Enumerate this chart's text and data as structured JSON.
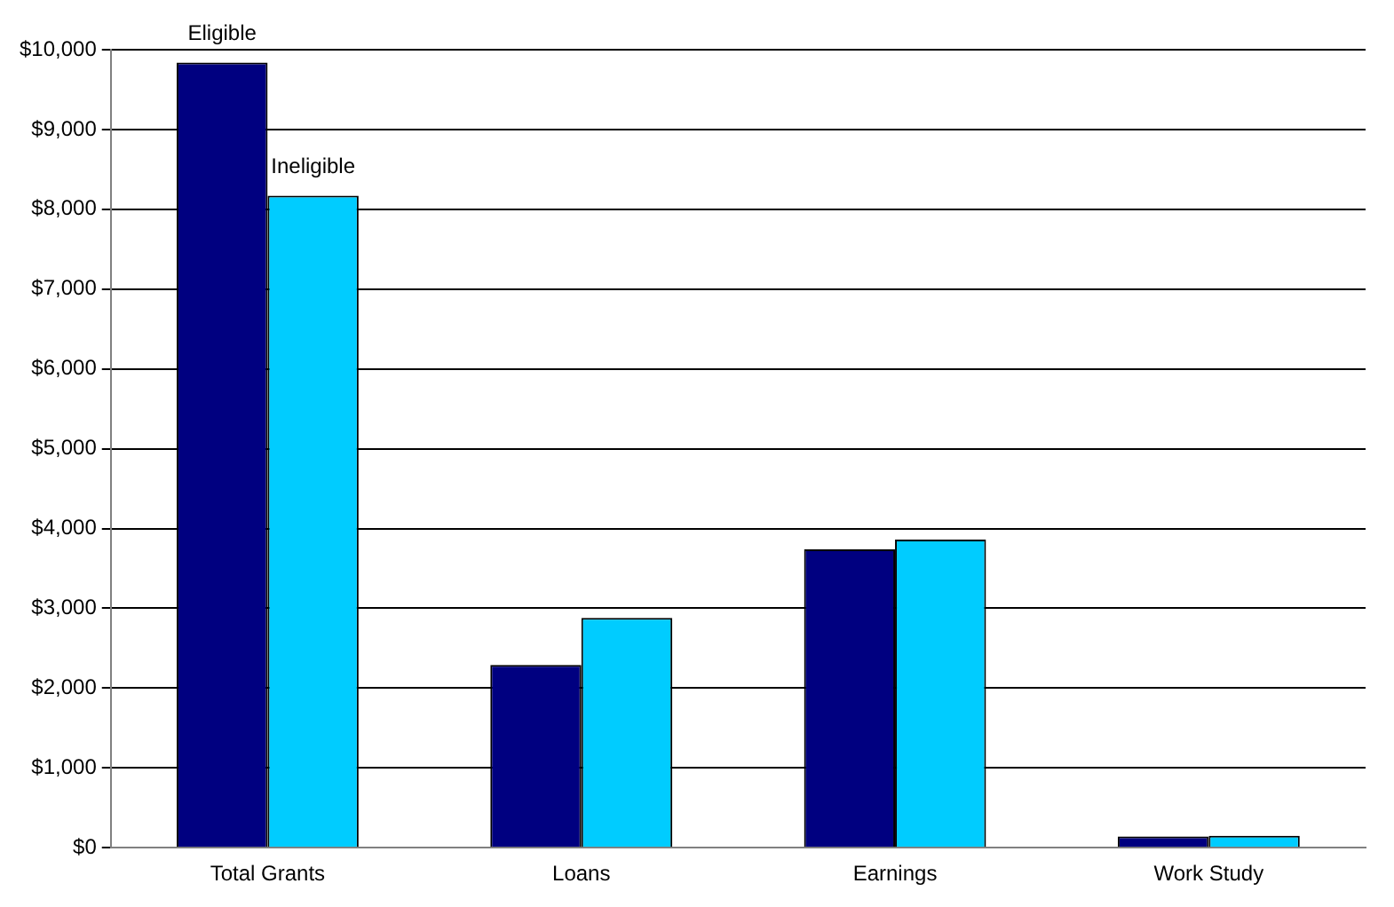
{
  "chart_data": {
    "type": "bar",
    "categories": [
      "Total Grants",
      "Loans",
      "Earnings",
      "Work Study"
    ],
    "series": [
      {
        "name": "Eligible",
        "color": "#000080",
        "values": [
          9840,
          2290,
          3740,
          140
        ]
      },
      {
        "name": "Ineligible",
        "color": "#00ccff",
        "values": [
          8170,
          2880,
          3860,
          150
        ]
      }
    ],
    "ylim": [
      0,
      10000
    ],
    "yticks": [
      {
        "value": 0,
        "label": "$0"
      },
      {
        "value": 1000,
        "label": "$1,000"
      },
      {
        "value": 2000,
        "label": "$2,000"
      },
      {
        "value": 3000,
        "label": "$3,000"
      },
      {
        "value": 4000,
        "label": "$4,000"
      },
      {
        "value": 5000,
        "label": "$5,000"
      },
      {
        "value": 6000,
        "label": "$6,000"
      },
      {
        "value": 7000,
        "label": "$7,000"
      },
      {
        "value": 8000,
        "label": "$8,000"
      },
      {
        "value": 9000,
        "label": "$9,000"
      },
      {
        "value": 10000,
        "label": "$10,000"
      }
    ],
    "grid": "y"
  }
}
